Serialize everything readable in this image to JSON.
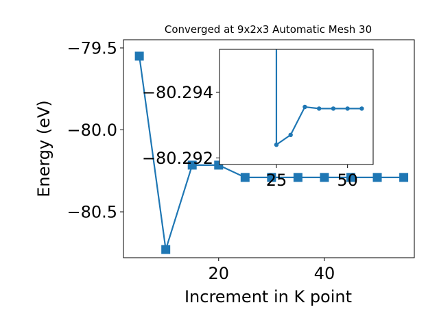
{
  "chart_data": [
    {
      "type": "line",
      "title": "Converged at 9x2x3 Automatic Mesh 30",
      "xlabel": "Increment in K point",
      "ylabel": "Energy (eV)",
      "xlim": [
        2,
        57
      ],
      "ylim": [
        -80.78,
        -79.45
      ],
      "xticks": [
        20,
        40
      ],
      "yticks": [
        -79.5,
        -80.0,
        -80.5
      ],
      "ytick_labels": [
        "−79.5",
        "−80.0",
        "−80.5"
      ],
      "marker": "square",
      "color": "#1f77b4",
      "grid": false,
      "series": [
        {
          "x": [
            5,
            10,
            15,
            20,
            25,
            30,
            35,
            40,
            45,
            50,
            55
          ],
          "y": [
            -79.55,
            -80.73,
            -80.215,
            -80.215,
            -80.29,
            -80.29,
            -80.29,
            -80.29,
            -80.29,
            -80.29,
            -80.29
          ]
        }
      ]
    },
    {
      "type": "line",
      "title": "",
      "xlabel": "",
      "ylabel": "",
      "xlim": [
        5,
        59
      ],
      "ylim": [
        -80.2918,
        -80.2953
      ],
      "xticks": [
        25,
        50
      ],
      "yticks": [
        -80.292,
        -80.294
      ],
      "ytick_labels": [
        "−80.292",
        "−80.294"
      ],
      "marker": "circle",
      "color": "#1f77b4",
      "grid": false,
      "series": [
        {
          "x": [
            25,
            30,
            35,
            40,
            45,
            50,
            55
          ],
          "y": [
            -80.2924,
            -80.2927,
            -80.29355,
            -80.2935,
            -80.2935,
            -80.2935,
            -80.2935
          ],
          "lead_in": {
            "x": 25,
            "y": -80.2953
          }
        }
      ]
    }
  ]
}
